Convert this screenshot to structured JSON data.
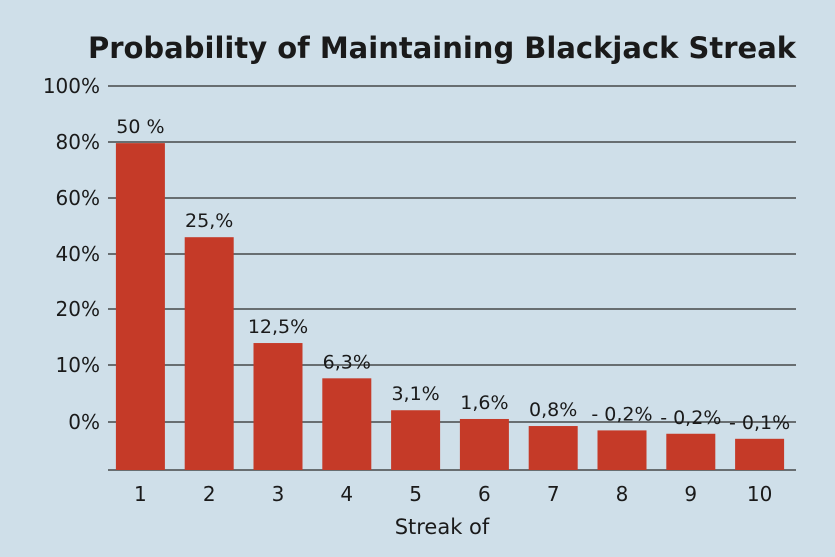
{
  "chart_data": {
    "type": "bar",
    "title": "Probability of Maintaining Blackjack Streak",
    "xlabel": "Streak of",
    "ylabel": "",
    "categories": [
      "1",
      "2",
      "3",
      "4",
      "5",
      "6",
      "7",
      "8",
      "9",
      "10"
    ],
    "y_tick_labels": [
      "0%",
      "10%",
      "20%",
      "40%",
      "60%",
      "80%",
      "100%"
    ],
    "bar_heights_percent_of_axis": [
      83,
      55,
      23.5,
      13,
      3.5,
      0.9,
      -1.2,
      -2.5,
      -3.5,
      -5
    ],
    "data_labels": [
      "50 %",
      "25,%",
      "12,5%",
      "6,3%",
      "3,1%",
      "1,6%",
      "0,8%",
      "0,2%",
      "0,2%",
      "0,1%"
    ],
    "label_separators": [
      "",
      "",
      "",
      "",
      "",
      "",
      "",
      "-",
      "-",
      "-"
    ],
    "grid": true,
    "legend": "none",
    "colors": {
      "bar": "#c53a28",
      "background": "#cfdfe9",
      "text": "#1a1a1a",
      "grid": "#2a2a2a"
    }
  }
}
